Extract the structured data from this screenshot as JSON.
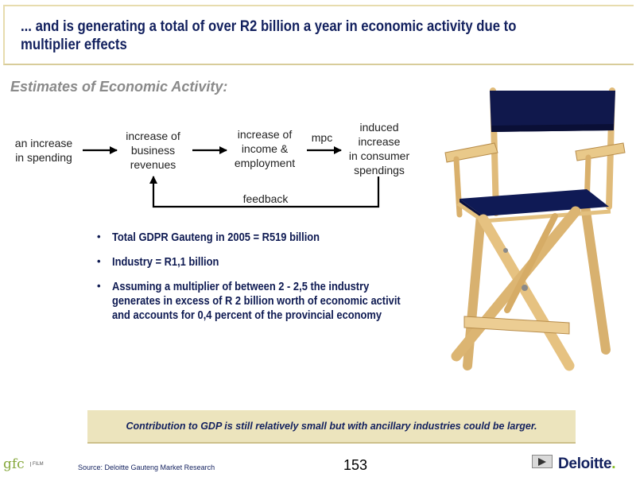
{
  "slide": {
    "title_lines": [
      "... and is generating a total of over R2 billion a year in economic activity due to",
      "multiplier effects"
    ],
    "subtitle": "Estimates of Economic Activity:"
  },
  "flow": {
    "nodes": [
      [
        "an increase",
        "in spending"
      ],
      [
        "increase of",
        "business",
        "revenues"
      ],
      [
        "increase of",
        "income &",
        "employment"
      ],
      [
        "induced",
        "increase",
        "in consumer",
        "spendings"
      ]
    ],
    "mpc_label": "mpc",
    "feedback_label": "feedback"
  },
  "bullets": [
    [
      "Total GDPR Gauteng in 2005 = R519 billion"
    ],
    [
      "Industry = R1,1 billion"
    ],
    [
      "Assuming a multiplier of between 2 - 2,5 the industry",
      "generates in excess of R 2 billion worth of economic activit",
      "and accounts for 0,4 percent of the provincial economy"
    ]
  ],
  "bullet_glyph": "•",
  "note": "Contribution to GDP is still relatively small but with ancillary industries could be larger.",
  "footer": {
    "logo_text": "gfc",
    "logo_small": "FILM",
    "source": "Source: Deloitte Gauteng Market Research",
    "page_number": "153",
    "brand": "Deloitte",
    "brand_dot": ".",
    "play_icon": "play-icon"
  },
  "colors": {
    "navy": "#12205e",
    "gold_border": "#e7dcae",
    "note_bg": "#ece4bd",
    "deloitte_green": "#86bc25"
  }
}
